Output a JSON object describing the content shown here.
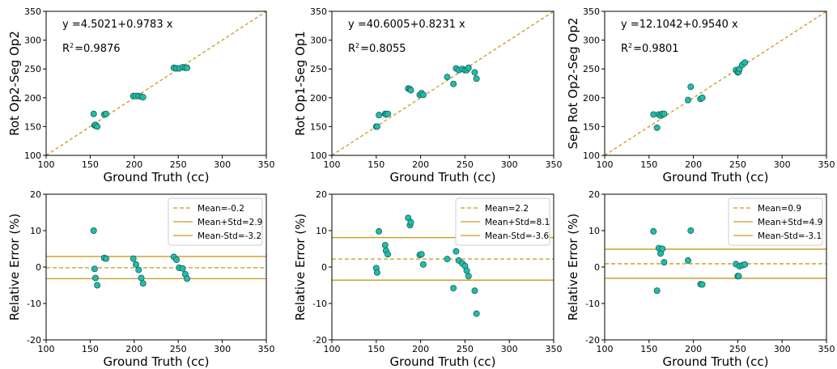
{
  "colors": {
    "marker_fill": "#1fbfa0",
    "marker_edge": "#1a5e6e",
    "line": "#c79a1c"
  },
  "chart_data": [
    {
      "type": "scatter",
      "xlabel": "Ground Truth (cc)",
      "ylabel": "Rot Op2-Seg Op2",
      "xlim": [
        100,
        350
      ],
      "ylim": [
        100,
        350
      ],
      "xticks": [
        100,
        150,
        200,
        250,
        300,
        350
      ],
      "yticks": [
        100,
        150,
        200,
        250,
        300,
        350
      ],
      "equation": "y =4.5021+0.9783 x",
      "r2_prefix": "R",
      "r2_sup": "2",
      "r2_value": "=0.9876",
      "reference_line": "y = x (dashed)",
      "points": {
        "x": [
          154,
          155,
          156,
          158,
          166,
          168,
          199,
          202,
          205,
          208,
          210,
          245,
          248,
          251,
          255,
          258,
          260
        ],
        "y": [
          172,
          152,
          153,
          150,
          171,
          172,
          203,
          203,
          203,
          202,
          201,
          252,
          251,
          251,
          253,
          252,
          252
        ]
      }
    },
    {
      "type": "scatter",
      "xlabel": "Ground Truth (cc)",
      "ylabel": "Rot Op1-Seg Op1",
      "xlim": [
        100,
        350
      ],
      "ylim": [
        100,
        350
      ],
      "xticks": [
        100,
        150,
        200,
        250,
        300,
        350
      ],
      "yticks": [
        100,
        150,
        200,
        250,
        300,
        350
      ],
      "equation": "y =40.6005+0.8231 x",
      "r2_prefix": "R",
      "r2_sup": "2",
      "r2_value": "=0.8055",
      "reference_line": "y = x (dashed)",
      "points": {
        "x": [
          150,
          151,
          153,
          160,
          161,
          163,
          186,
          188,
          189,
          199,
          201,
          203,
          230,
          237,
          240,
          243,
          247,
          250,
          252,
          254,
          261,
          263
        ],
        "y": [
          150,
          150,
          170,
          172,
          171,
          172,
          216,
          215,
          213,
          205,
          208,
          205,
          236,
          224,
          251,
          248,
          250,
          248,
          248,
          252,
          244,
          233
        ]
      }
    },
    {
      "type": "scatter",
      "xlabel": "Ground Truth (cc)",
      "ylabel": "Sep Rot Op2-Seg Op2",
      "xlim": [
        100,
        350
      ],
      "ylim": [
        100,
        350
      ],
      "xticks": [
        100,
        150,
        200,
        250,
        300,
        350
      ],
      "yticks": [
        100,
        150,
        200,
        250,
        300,
        350
      ],
      "equation": "y =12.1042+0.9540 x",
      "r2_prefix": "R",
      "r2_sup": "2",
      "r2_value": "=0.9801",
      "reference_line": "y = x (dashed)",
      "points": {
        "x": [
          155,
          159,
          161,
          163,
          165,
          167,
          194,
          197,
          208,
          210,
          248,
          250,
          251,
          252,
          255,
          258
        ],
        "y": [
          171,
          148,
          171,
          169,
          172,
          172,
          196,
          219,
          198,
          200,
          248,
          244,
          245,
          250,
          257,
          261
        ]
      }
    },
    {
      "type": "scatter",
      "xlabel": "Ground Truth (cc)",
      "ylabel": "Relative Error (%)",
      "xlim": [
        100,
        350
      ],
      "ylim": [
        -20,
        20
      ],
      "xticks": [
        100,
        150,
        200,
        250,
        300,
        350
      ],
      "yticks": [
        -20,
        -10,
        0,
        10,
        20
      ],
      "legend": {
        "placement": "top-right",
        "entries": [
          "Mean=-0.2",
          "Mean+Std=2.9",
          "Mean-Std=-3.2"
        ]
      },
      "hlines": {
        "mean": -0.2,
        "upper": 2.9,
        "lower": -3.2
      },
      "points": {
        "x": [
          154,
          155,
          156,
          158,
          166,
          168,
          199,
          202,
          205,
          208,
          210,
          245,
          248,
          251,
          255,
          258,
          260
        ],
        "y": [
          10.0,
          -0.5,
          -3.0,
          -5.0,
          2.5,
          2.3,
          2.3,
          0.7,
          -0.8,
          -3.0,
          -4.5,
          2.8,
          2.0,
          -0.2,
          -0.4,
          -2.0,
          -3.2
        ]
      }
    },
    {
      "type": "scatter",
      "xlabel": "Ground Truth (cc)",
      "ylabel": "Relative Error (%)",
      "xlim": [
        100,
        350
      ],
      "ylim": [
        -20,
        20
      ],
      "xticks": [
        100,
        150,
        200,
        250,
        300,
        350
      ],
      "yticks": [
        -20,
        -10,
        0,
        10,
        20
      ],
      "legend": {
        "placement": "top-right",
        "entries": [
          "Mean=2.2",
          "Mean+Std=8.1",
          "Mean-Std=-3.6"
        ]
      },
      "hlines": {
        "mean": 2.2,
        "upper": 8.1,
        "lower": -3.6
      },
      "points": {
        "x": [
          150,
          151,
          153,
          160,
          161,
          163,
          186,
          188,
          189,
          199,
          201,
          203,
          230,
          237,
          240,
          243,
          247,
          250,
          252,
          254,
          261,
          263
        ],
        "y": [
          -0.3,
          -1.5,
          9.8,
          6.0,
          4.5,
          3.5,
          13.5,
          11.5,
          12.3,
          3.3,
          3.5,
          0.7,
          2.2,
          -5.8,
          4.3,
          1.8,
          1.0,
          0.3,
          -1.0,
          -2.5,
          -6.5,
          -12.8
        ]
      }
    },
    {
      "type": "scatter",
      "xlabel": "Ground Truth (cc)",
      "ylabel": "Relative Error (%)",
      "xlim": [
        100,
        350
      ],
      "ylim": [
        -20,
        20
      ],
      "xticks": [
        100,
        150,
        200,
        250,
        300,
        350
      ],
      "yticks": [
        -20,
        -10,
        0,
        10,
        20
      ],
      "legend": {
        "placement": "top-right",
        "entries": [
          "Mean=0.9",
          "Mean+Std=4.9",
          "Mean-Std=-3.1"
        ]
      },
      "hlines": {
        "mean": 0.9,
        "upper": 4.9,
        "lower": -3.1
      },
      "points": {
        "x": [
          155,
          159,
          161,
          163,
          165,
          167,
          194,
          197,
          208,
          210,
          248,
          250,
          251,
          252,
          255,
          258
        ],
        "y": [
          9.8,
          -6.5,
          5.2,
          3.7,
          5.0,
          1.3,
          1.8,
          10.0,
          -4.7,
          -4.8,
          0.8,
          -2.5,
          -2.5,
          0.2,
          0.5,
          0.7
        ]
      }
    }
  ]
}
